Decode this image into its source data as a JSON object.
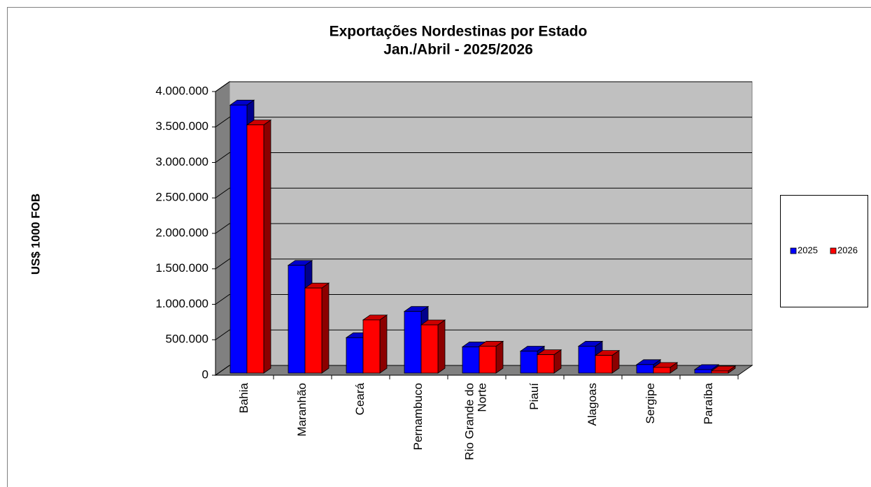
{
  "chart_data": {
    "type": "bar3d",
    "title": "Exportações Nordestinas por Estado",
    "subtitle": "Jan./Abril - 2025/2026",
    "y_label": "US$ 1000 FOB",
    "categories": [
      "Bahia",
      "Maranhão",
      "Ceará",
      "Pernambuco",
      "Rio Grande do Norte",
      "Piauí",
      "Alagoas",
      "Sergipe",
      "Paraíba"
    ],
    "series": [
      {
        "name": "2025",
        "color": "#0000ff",
        "values": [
          3780000,
          1520000,
          500000,
          870000,
          370000,
          310000,
          380000,
          120000,
          50000
        ]
      },
      {
        "name": "2026",
        "color": "#ff0000",
        "values": [
          3500000,
          1200000,
          750000,
          680000,
          380000,
          260000,
          250000,
          80000,
          30000
        ]
      }
    ],
    "ylim": [
      0,
      4000000
    ],
    "yticks": [
      0,
      {
        "value": 500000,
        "label": "500.000"
      },
      {
        "value": 1000000,
        "label": "1.000.000"
      },
      {
        "value": 1500000,
        "label": "1.500.000"
      },
      {
        "value": 2000000,
        "label": "2.000.000"
      },
      {
        "value": 2500000,
        "label": "2.500.000"
      },
      {
        "value": 3000000,
        "label": "3.000.000"
      },
      {
        "value": 3500000,
        "label": "3.500.000"
      },
      {
        "value": 4000000,
        "label": "4.000.000"
      }
    ],
    "grid": true,
    "legend": "right"
  }
}
